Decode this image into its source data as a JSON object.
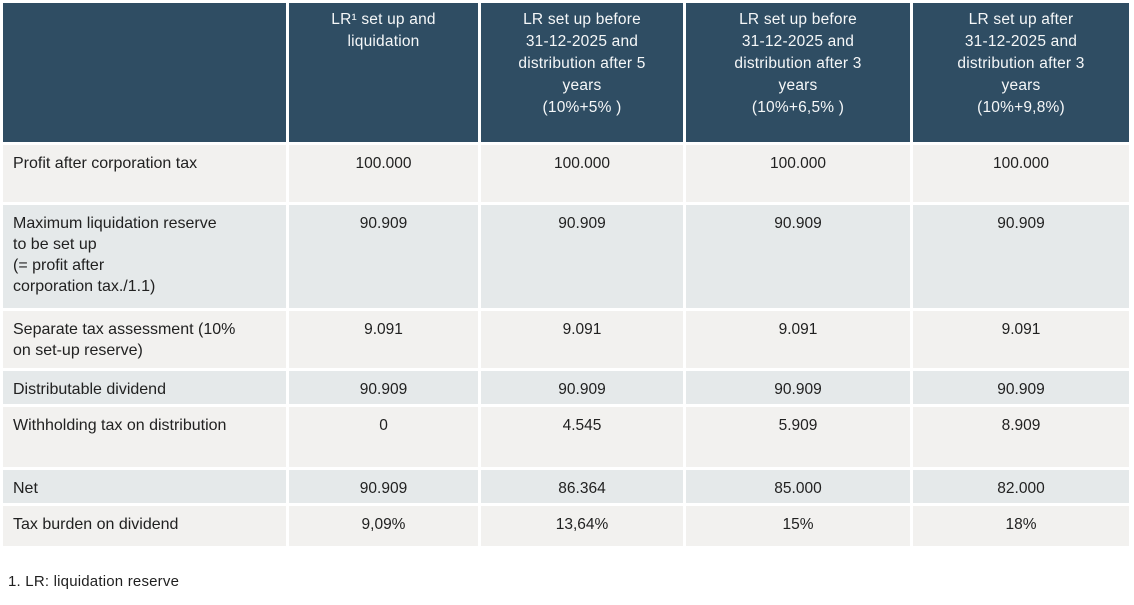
{
  "table": {
    "columns": [
      "",
      "LR¹ set up and\nliquidation",
      "LR set up before\n31-12-2025 and\ndistribution after 5\nyears\n(10%+5% )",
      "LR set up before\n31-12-2025 and\ndistribution after 3\nyears\n(10%+6,5% )",
      "LR set up after\n31-12-2025 and\ndistribution after 3\nyears\n(10%+9,8%)"
    ],
    "rows": [
      {
        "label": "Profit after corporation tax",
        "values": [
          "100.000",
          "100.000",
          "100.000",
          "100.000"
        ]
      },
      {
        "label": "Maximum liquidation reserve\nto be set up\n(= profit after\ncorporation tax./1.1)",
        "values": [
          "90.909",
          "90.909",
          "90.909",
          "90.909"
        ]
      },
      {
        "label": "Separate tax assessment (10%\non set-up reserve)",
        "values": [
          "9.091",
          "9.091",
          "9.091",
          "9.091"
        ]
      },
      {
        "label": "Distributable dividend",
        "values": [
          "90.909",
          "90.909",
          "90.909",
          "90.909"
        ]
      },
      {
        "label": "Withholding tax on distribution",
        "values": [
          "0",
          "4.545",
          "5.909",
          "8.909"
        ]
      },
      {
        "label": "Net",
        "values": [
          "90.909",
          "86.364",
          "85.000",
          "82.000"
        ]
      },
      {
        "label": "Tax burden on dividend",
        "values": [
          "9,09%",
          "13,64%",
          "15%",
          "18%"
        ]
      }
    ]
  },
  "footnote": "1. LR: liquidation reserve",
  "colors": {
    "header_bg": "#2F4D63",
    "header_text": "#F5F7F8",
    "row_light": "#F2F1EF",
    "row_dark": "#E5E9EA",
    "body_text": "#212121"
  }
}
